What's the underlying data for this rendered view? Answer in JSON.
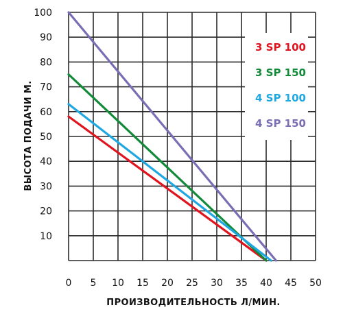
{
  "chart_data": {
    "type": "line",
    "xlabel": "ПРОИЗВОДИТЕЛЬНОСТЬ Л/МИН.",
    "ylabel": "ВЫСОТА ПОДАЧИ М.",
    "xlim": [
      0,
      50
    ],
    "ylim": [
      0,
      100
    ],
    "x_ticks": [
      0,
      5,
      10,
      15,
      20,
      25,
      30,
      35,
      40,
      45,
      50
    ],
    "y_ticks": [
      10,
      20,
      30,
      40,
      50,
      60,
      70,
      80,
      90,
      100
    ],
    "grid": true,
    "legend_position": "right",
    "series": [
      {
        "name": "3 SP 100",
        "color": "#e0141e",
        "x": [
          0,
          40
        ],
        "y": [
          58,
          0
        ]
      },
      {
        "name": "3 SP 150",
        "color": "#128a3a",
        "x": [
          0,
          40
        ],
        "y": [
          75,
          0
        ]
      },
      {
        "name": "4 SP 100",
        "color": "#1ea7e1",
        "x": [
          0,
          41
        ],
        "y": [
          63,
          0
        ]
      },
      {
        "name": "4 SP 150",
        "color": "#7b6db3",
        "x": [
          0,
          42
        ],
        "y": [
          100,
          0
        ]
      }
    ]
  }
}
